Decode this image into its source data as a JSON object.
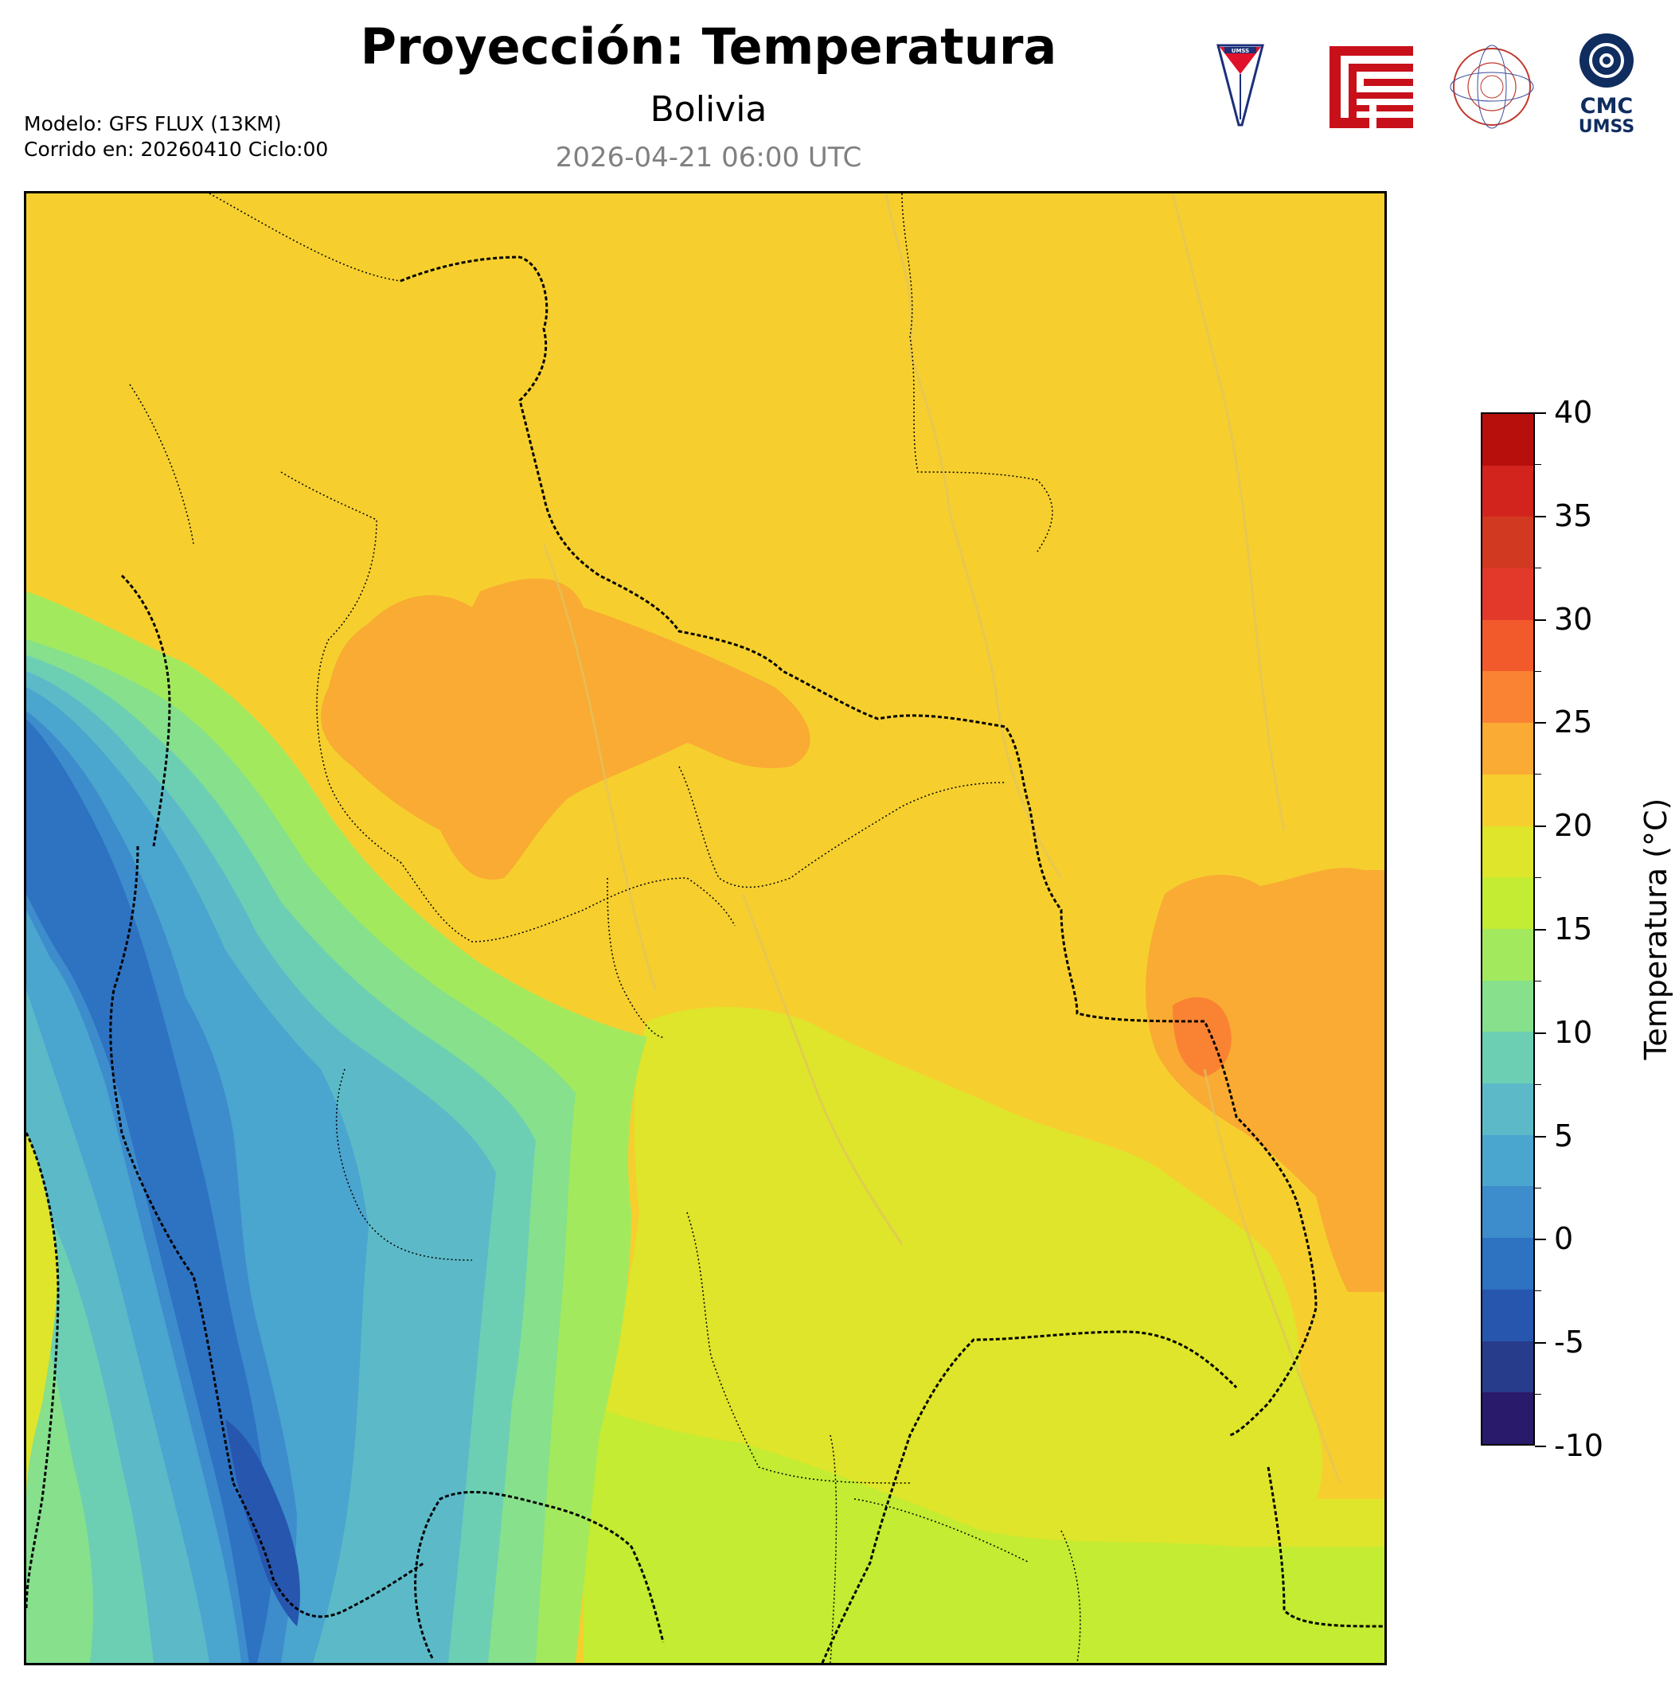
{
  "header": {
    "title": "Proyección: Temperatura",
    "subtitle": "Bolivia",
    "datetime": "2026-04-21 06:00 UTC"
  },
  "meta": {
    "model": "Modelo: GFS FLUX (13KM)",
    "run": "Corrido en: 20260410 Ciclo:00"
  },
  "logos": {
    "umss_text": "UMSS",
    "cmc_line1": "CMC",
    "cmc_line2": "UMSS"
  },
  "colorbar": {
    "label": "Temperatura (°C)",
    "min": -10,
    "max": 40,
    "step": 2.5,
    "tick_labels": [
      "-10",
      "-5",
      "0",
      "5",
      "10",
      "15",
      "20",
      "25",
      "30",
      "35",
      "40"
    ],
    "colors": [
      "#2a1a6b",
      "#283c8c",
      "#2756ae",
      "#2e72c2",
      "#3d8ccc",
      "#4aa5cf",
      "#5cbac8",
      "#6ccfb4",
      "#86e08c",
      "#a3e95e",
      "#c3ec32",
      "#dee52a",
      "#f6cf2e",
      "#f9ab33",
      "#fa8333",
      "#f25a2c",
      "#e3392a",
      "#d23921",
      "#d2241c",
      "#b70f0c"
    ]
  },
  "map": {
    "region": "Bolivia",
    "variable": "temperature",
    "units": "°C",
    "colors": {
      "hot": "#f9ab33",
      "warm": "#f6cf2e",
      "mild": "#dee52a",
      "lime": "#c3ec32",
      "green": "#a3e95e",
      "light_green": "#86e08c",
      "teal": "#6ccfb4",
      "cyan": "#5cbac8",
      "blue": "#4aa5cf",
      "deep_blue": "#3d8ccc",
      "cold": "#2e72c2",
      "coldest": "#2756ae",
      "hottest": "#fa8333"
    }
  }
}
